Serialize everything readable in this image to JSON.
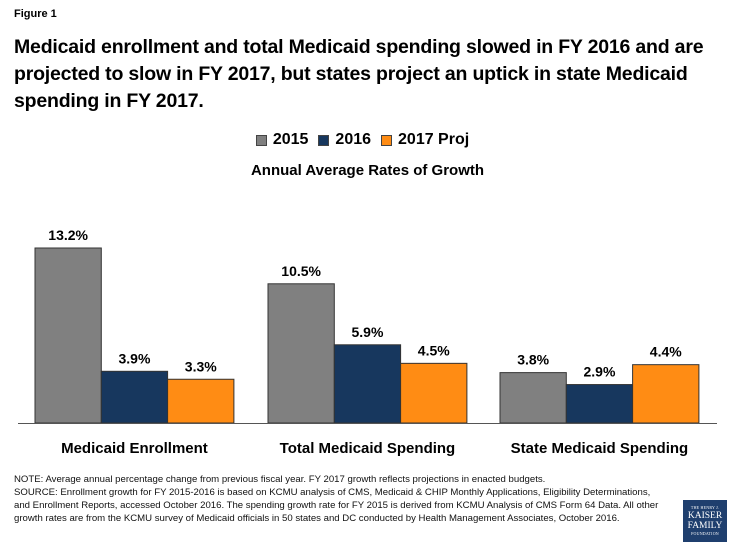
{
  "figure_label": "Figure 1",
  "title": "Medicaid enrollment and total Medicaid spending slowed in FY 2016 and are projected to slow in FY 2017, but states project an uptick in state Medicaid spending in FY 2017.",
  "notes": {
    "note": "NOTE: Average annual percentage change from previous fiscal year. FY 2017 growth reflects projections in enacted budgets.",
    "source": "SOURCE: Enrollment growth for FY 2015-2016 is based on KCMU analysis of CMS, Medicaid & CHIP Monthly Applications, Eligibility Determinations, and Enrollment Reports, accessed October 2016. The spending growth rate for FY 2015 is derived from KCMU Analysis of CMS Form 64 Data. All other growth rates are from the KCMU survey of Medicaid officials in 50 states and DC conducted by Health Management Associates, October 2016."
  },
  "logo": {
    "line1": "THE HENRY J.",
    "line2": "KAISER",
    "line3": "FAMILY",
    "line4": "FOUNDATION"
  },
  "chart_data": {
    "type": "bar",
    "title": "Annual Average Rates of Growth",
    "xlabel": "",
    "ylabel": "",
    "ylim": [
      0,
      13.2
    ],
    "grid": false,
    "legend_position": "top-center",
    "categories": [
      "Medicaid Enrollment",
      "Total Medicaid Spending",
      "State Medicaid Spending"
    ],
    "series": [
      {
        "name": "2015",
        "color": "#808080",
        "values": [
          13.2,
          10.5,
          3.8
        ],
        "labels": [
          "13.2%",
          "10.5%",
          "3.8%"
        ]
      },
      {
        "name": "2016",
        "color": "#17375E",
        "values": [
          3.9,
          5.9,
          2.9
        ],
        "labels": [
          "3.9%",
          "5.9%",
          "2.9%"
        ]
      },
      {
        "name": "2017 Proj",
        "color": "#FF8C14",
        "values": [
          3.3,
          4.5,
          4.4
        ],
        "labels": [
          "3.3%",
          "4.5%",
          "4.4%"
        ]
      }
    ]
  }
}
